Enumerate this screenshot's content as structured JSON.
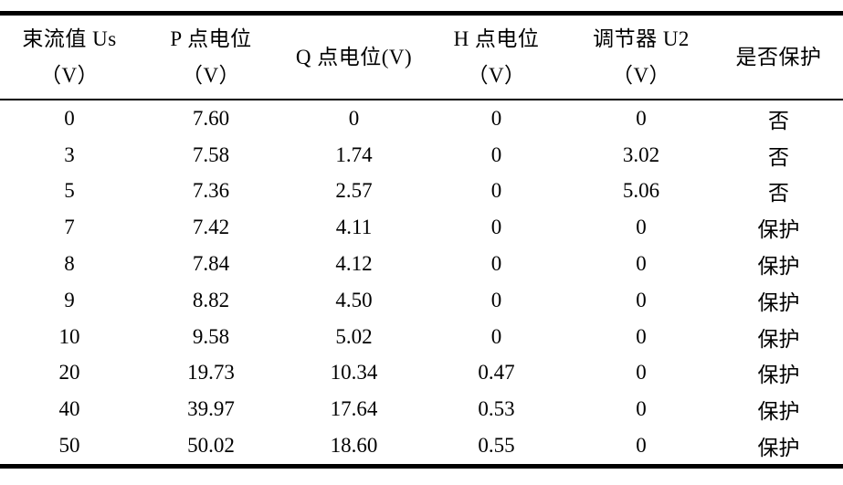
{
  "colors": {
    "text": "#000000",
    "border": "#000000",
    "background": "#ffffff"
  },
  "table": {
    "columns": [
      {
        "id": "us",
        "label_lines": [
          "束流值 Us",
          "（V）"
        ]
      },
      {
        "id": "p",
        "label_lines": [
          "P 点电位",
          "（V）"
        ]
      },
      {
        "id": "q",
        "label_lines": [
          "Q 点电位(V)"
        ]
      },
      {
        "id": "h",
        "label_lines": [
          "H 点电位",
          "（V）"
        ]
      },
      {
        "id": "u2",
        "label_lines": [
          "调节器 U2",
          "（V）"
        ]
      },
      {
        "id": "protect",
        "label_lines": [
          "是否保护"
        ]
      }
    ],
    "rows": [
      [
        "0",
        "7.60",
        "0",
        "0",
        "0",
        "否"
      ],
      [
        "3",
        "7.58",
        "1.74",
        "0",
        "3.02",
        "否"
      ],
      [
        "5",
        "7.36",
        "2.57",
        "0",
        "5.06",
        "否"
      ],
      [
        "7",
        "7.42",
        "4.11",
        "0",
        "0",
        "保护"
      ],
      [
        "8",
        "7.84",
        "4.12",
        "0",
        "0",
        "保护"
      ],
      [
        "9",
        "8.82",
        "4.50",
        "0",
        "0",
        "保护"
      ],
      [
        "10",
        "9.58",
        "5.02",
        "0",
        "0",
        "保护"
      ],
      [
        "20",
        "19.73",
        "10.34",
        "0.47",
        "0",
        "保护"
      ],
      [
        "40",
        "39.97",
        "17.64",
        "0.53",
        "0",
        "保护"
      ],
      [
        "50",
        "50.02",
        "18.60",
        "0.55",
        "0",
        "保护"
      ]
    ]
  }
}
